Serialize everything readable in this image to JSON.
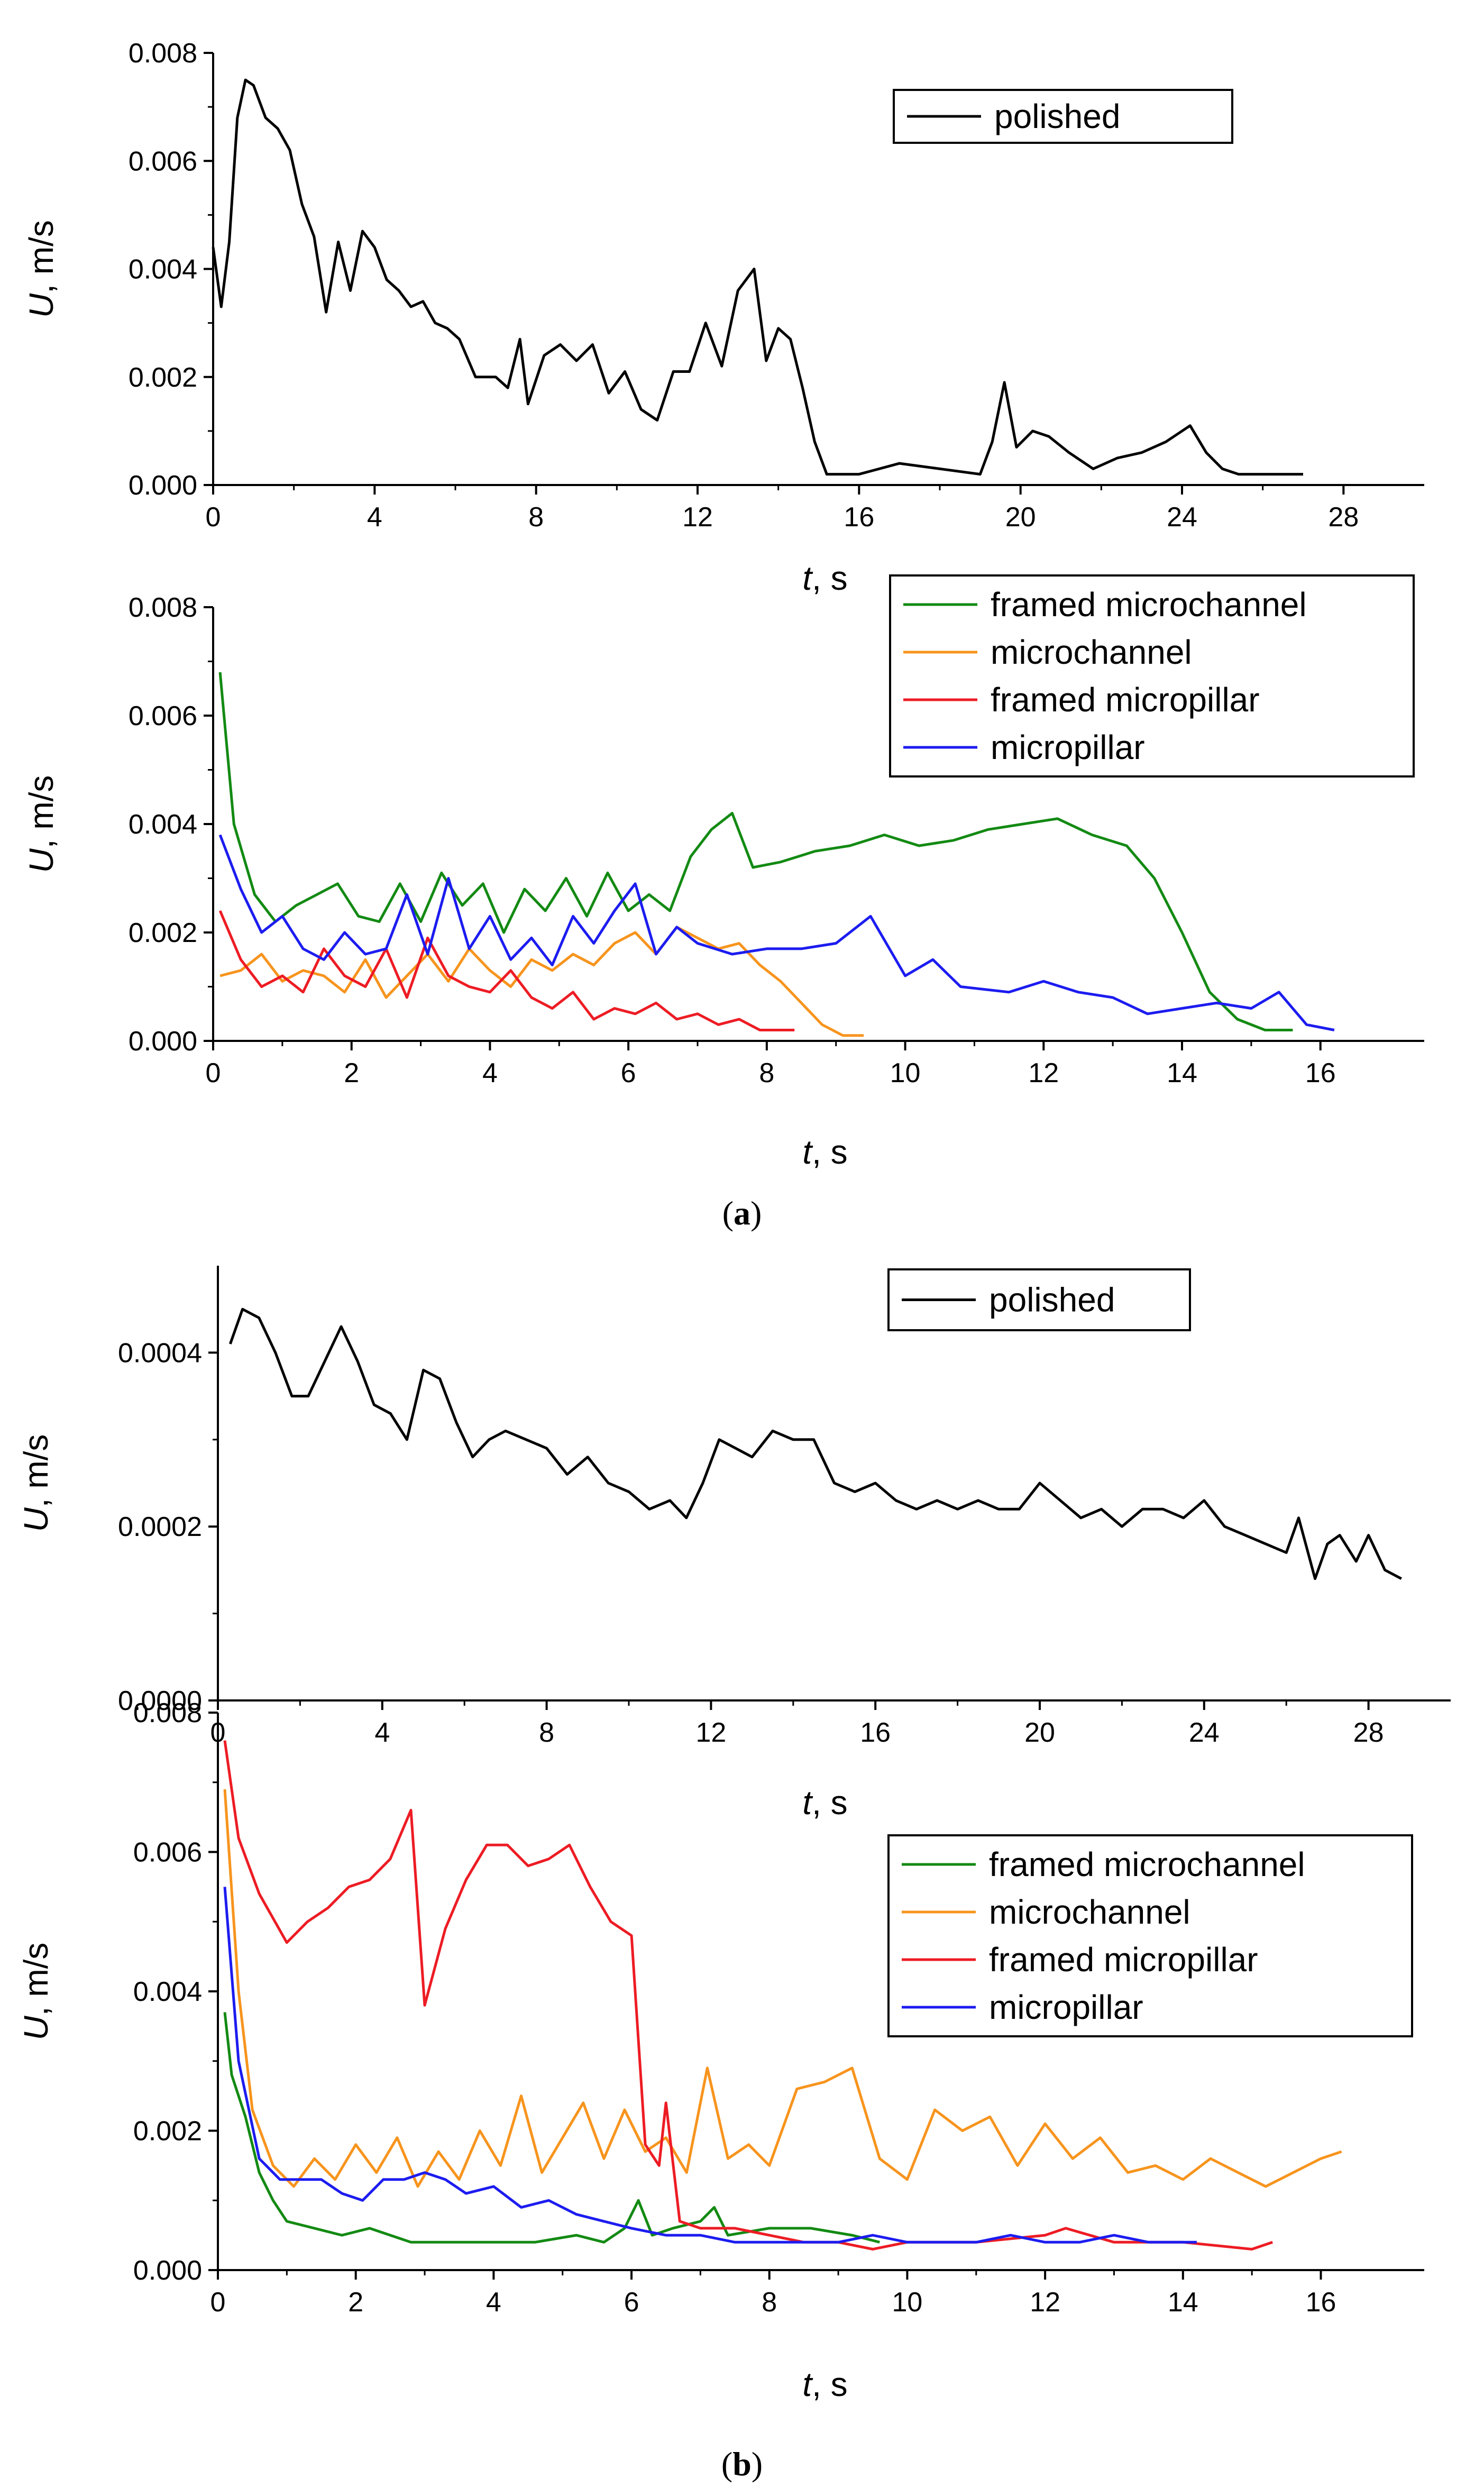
{
  "figure_labels": {
    "a": "a",
    "b": "b"
  },
  "axis_text": {
    "y_var": "U",
    "y_unit": ", m/s",
    "x_var": "t",
    "x_unit": ", s"
  },
  "colors": {
    "polished": "#000000",
    "framed microchannel": "#138a13",
    "microchannel": "#f7941d",
    "framed micropillar": "#ed1c24",
    "micropillar": "#1c1cf0"
  },
  "chart_data": [
    {
      "id": "a-top",
      "type": "line",
      "xlim": [
        0,
        30
      ],
      "ylim": [
        0,
        0.008
      ],
      "xticks": [
        0,
        4,
        8,
        12,
        16,
        20,
        24,
        28
      ],
      "yticks": [
        0,
        0.002,
        0.004,
        0.006,
        0.008
      ],
      "ytick_labels": [
        "0.000",
        "0.002",
        "0.004",
        "0.006",
        "0.008"
      ],
      "legend": [
        "polished"
      ],
      "series": [
        {
          "name": "polished",
          "x": [
            0,
            0.2,
            0.4,
            0.6,
            0.8,
            1.0,
            1.3,
            1.6,
            1.9,
            2.2,
            2.5,
            2.8,
            3.1,
            3.4,
            3.7,
            4.0,
            4.3,
            4.6,
            4.9,
            5.2,
            5.5,
            5.8,
            6.1,
            6.5,
            7.0,
            7.3,
            7.6,
            7.8,
            8.2,
            8.6,
            9.0,
            9.4,
            9.8,
            10.2,
            10.6,
            11.0,
            11.4,
            11.8,
            12.2,
            12.6,
            13.0,
            13.4,
            13.7,
            14.0,
            14.3,
            14.6,
            14.9,
            15.2,
            16.0,
            17.0,
            18.0,
            19.0,
            19.3,
            19.6,
            19.9,
            20.3,
            20.7,
            21.2,
            21.8,
            22.4,
            23.0,
            23.6,
            24.2,
            24.6,
            25.0,
            25.4,
            26.0,
            27.0
          ],
          "values": [
            0.0044,
            0.0033,
            0.0045,
            0.0068,
            0.0075,
            0.0074,
            0.0068,
            0.0066,
            0.0062,
            0.0052,
            0.0046,
            0.0032,
            0.0045,
            0.0036,
            0.0047,
            0.0044,
            0.0038,
            0.0036,
            0.0033,
            0.0034,
            0.003,
            0.0029,
            0.0027,
            0.002,
            0.002,
            0.0018,
            0.0027,
            0.0015,
            0.0024,
            0.0026,
            0.0023,
            0.0026,
            0.0017,
            0.0021,
            0.0014,
            0.0012,
            0.0021,
            0.0021,
            0.003,
            0.0022,
            0.0036,
            0.004,
            0.0023,
            0.0029,
            0.0027,
            0.0018,
            0.0008,
            0.0002,
            0.0002,
            0.0004,
            0.0003,
            0.0002,
            0.0008,
            0.0019,
            0.0007,
            0.001,
            0.0009,
            0.0006,
            0.0003,
            0.0005,
            0.0006,
            0.0008,
            0.0011,
            0.0006,
            0.0003,
            0.0002,
            0.0002,
            0.0002
          ]
        }
      ]
    },
    {
      "id": "a-bottom",
      "type": "line",
      "xlim": [
        0,
        17.5
      ],
      "ylim": [
        0,
        0.008
      ],
      "xticks": [
        0,
        2,
        4,
        6,
        8,
        10,
        12,
        14,
        16
      ],
      "yticks": [
        0,
        0.002,
        0.004,
        0.006,
        0.008
      ],
      "ytick_labels": [
        "0.000",
        "0.002",
        "0.004",
        "0.006",
        "0.008"
      ],
      "legend": [
        "framed microchannel",
        "microchannel",
        "framed micropillar",
        "micropillar"
      ],
      "series": [
        {
          "name": "framed microchannel",
          "x": [
            0.1,
            0.3,
            0.6,
            0.9,
            1.2,
            1.5,
            1.8,
            2.1,
            2.4,
            2.7,
            3.0,
            3.3,
            3.6,
            3.9,
            4.2,
            4.5,
            4.8,
            5.1,
            5.4,
            5.7,
            6.0,
            6.3,
            6.6,
            6.9,
            7.2,
            7.5,
            7.8,
            8.2,
            8.7,
            9.2,
            9.7,
            10.2,
            10.7,
            11.2,
            11.7,
            12.2,
            12.7,
            13.2,
            13.6,
            14.0,
            14.4,
            14.8,
            15.2,
            15.6
          ],
          "values": [
            0.0068,
            0.004,
            0.0027,
            0.0022,
            0.0025,
            0.0027,
            0.0029,
            0.0023,
            0.0022,
            0.0029,
            0.0022,
            0.0031,
            0.0025,
            0.0029,
            0.002,
            0.0028,
            0.0024,
            0.003,
            0.0023,
            0.0031,
            0.0024,
            0.0027,
            0.0024,
            0.0034,
            0.0039,
            0.0042,
            0.0032,
            0.0033,
            0.0035,
            0.0036,
            0.0038,
            0.0036,
            0.0037,
            0.0039,
            0.004,
            0.0041,
            0.0038,
            0.0036,
            0.003,
            0.002,
            0.0009,
            0.0004,
            0.0002,
            0.0002
          ]
        },
        {
          "name": "microchannel",
          "x": [
            0.1,
            0.4,
            0.7,
            1.0,
            1.3,
            1.6,
            1.9,
            2.2,
            2.5,
            2.8,
            3.1,
            3.4,
            3.7,
            4.0,
            4.3,
            4.6,
            4.9,
            5.2,
            5.5,
            5.8,
            6.1,
            6.4,
            6.7,
            7.0,
            7.3,
            7.6,
            7.9,
            8.2,
            8.5,
            8.8,
            9.1,
            9.4
          ],
          "values": [
            0.0012,
            0.0013,
            0.0016,
            0.0011,
            0.0013,
            0.0012,
            0.0009,
            0.0015,
            0.0008,
            0.0012,
            0.0016,
            0.0011,
            0.0017,
            0.0013,
            0.001,
            0.0015,
            0.0013,
            0.0016,
            0.0014,
            0.0018,
            0.002,
            0.0016,
            0.0021,
            0.0019,
            0.0017,
            0.0018,
            0.0014,
            0.0011,
            0.0007,
            0.0003,
            0.0001,
            0.0001
          ]
        },
        {
          "name": "framed micropillar",
          "x": [
            0.1,
            0.4,
            0.7,
            1.0,
            1.3,
            1.6,
            1.9,
            2.2,
            2.5,
            2.8,
            3.1,
            3.4,
            3.7,
            4.0,
            4.3,
            4.6,
            4.9,
            5.2,
            5.5,
            5.8,
            6.1,
            6.4,
            6.7,
            7.0,
            7.3,
            7.6,
            7.9,
            8.4
          ],
          "values": [
            0.0024,
            0.0015,
            0.001,
            0.0012,
            0.0009,
            0.0017,
            0.0012,
            0.001,
            0.0017,
            0.0008,
            0.0019,
            0.0012,
            0.001,
            0.0009,
            0.0013,
            0.0008,
            0.0006,
            0.0009,
            0.0004,
            0.0006,
            0.0005,
            0.0007,
            0.0004,
            0.0005,
            0.0003,
            0.0004,
            0.0002,
            0.0002
          ]
        },
        {
          "name": "micropillar",
          "x": [
            0.1,
            0.4,
            0.7,
            1.0,
            1.3,
            1.6,
            1.9,
            2.2,
            2.5,
            2.8,
            3.1,
            3.4,
            3.7,
            4.0,
            4.3,
            4.6,
            4.9,
            5.2,
            5.5,
            5.8,
            6.1,
            6.4,
            6.7,
            7.0,
            7.5,
            8.0,
            8.5,
            9.0,
            9.5,
            10.0,
            10.4,
            10.8,
            11.5,
            12.0,
            12.5,
            13.0,
            13.5,
            14.0,
            14.5,
            15.0,
            15.4,
            15.8,
            16.2
          ],
          "values": [
            0.0038,
            0.0028,
            0.002,
            0.0023,
            0.0017,
            0.0015,
            0.002,
            0.0016,
            0.0017,
            0.0027,
            0.0016,
            0.003,
            0.0017,
            0.0023,
            0.0015,
            0.0019,
            0.0014,
            0.0023,
            0.0018,
            0.0024,
            0.0029,
            0.0016,
            0.0021,
            0.0018,
            0.0016,
            0.0017,
            0.0017,
            0.0018,
            0.0023,
            0.0012,
            0.0015,
            0.001,
            0.0009,
            0.0011,
            0.0009,
            0.0008,
            0.0005,
            0.0006,
            0.0007,
            0.0006,
            0.0009,
            0.0003,
            0.0002
          ]
        }
      ]
    },
    {
      "id": "b-top",
      "type": "line",
      "xlim": [
        0,
        30
      ],
      "ylim": [
        0,
        0.0005
      ],
      "xticks": [
        0,
        4,
        8,
        12,
        16,
        20,
        24,
        28
      ],
      "yticks": [
        0,
        0.0002,
        0.0004
      ],
      "ytick_labels": [
        "0.0000",
        "0.0002",
        "0.0004"
      ],
      "legend": [
        "polished"
      ],
      "series": [
        {
          "name": "polished",
          "x": [
            0.3,
            0.6,
            1.0,
            1.4,
            1.8,
            2.2,
            2.6,
            3.0,
            3.4,
            3.8,
            4.2,
            4.6,
            5.0,
            5.4,
            5.8,
            6.2,
            6.6,
            7.0,
            7.5,
            8.0,
            8.5,
            9.0,
            9.5,
            10.0,
            10.5,
            11.0,
            11.4,
            11.8,
            12.2,
            12.6,
            13.0,
            13.5,
            14.0,
            14.5,
            15.0,
            15.5,
            16.0,
            16.5,
            17.0,
            17.5,
            18.0,
            18.5,
            19.0,
            19.5,
            20.0,
            20.5,
            21.0,
            21.5,
            22.0,
            22.5,
            23.0,
            23.5,
            24.0,
            24.5,
            25.0,
            25.5,
            26.0,
            26.3,
            26.7,
            27.0,
            27.3,
            27.7,
            28.0,
            28.4,
            28.8
          ],
          "values": [
            0.00041,
            0.00045,
            0.00044,
            0.0004,
            0.00035,
            0.00035,
            0.00039,
            0.00043,
            0.00039,
            0.00034,
            0.00033,
            0.0003,
            0.00038,
            0.00037,
            0.00032,
            0.00028,
            0.0003,
            0.00031,
            0.0003,
            0.00029,
            0.00026,
            0.00028,
            0.00025,
            0.00024,
            0.00022,
            0.00023,
            0.00021,
            0.00025,
            0.0003,
            0.00029,
            0.00028,
            0.00031,
            0.0003,
            0.0003,
            0.00025,
            0.00024,
            0.00025,
            0.00023,
            0.00022,
            0.00023,
            0.00022,
            0.00023,
            0.00022,
            0.00022,
            0.00025,
            0.00023,
            0.00021,
            0.00022,
            0.0002,
            0.00022,
            0.00022,
            0.00021,
            0.00023,
            0.0002,
            0.00019,
            0.00018,
            0.00017,
            0.00021,
            0.00014,
            0.00018,
            0.00019,
            0.00016,
            0.00019,
            0.00015,
            0.00014
          ]
        }
      ]
    },
    {
      "id": "b-bottom",
      "type": "line",
      "xlim": [
        0,
        17.5
      ],
      "ylim": [
        0,
        0.008
      ],
      "xticks": [
        0,
        2,
        4,
        6,
        8,
        10,
        12,
        14,
        16
      ],
      "yticks": [
        0,
        0.002,
        0.004,
        0.006,
        0.008
      ],
      "ytick_labels": [
        "0.000",
        "0.002",
        "0.004",
        "0.006",
        "0.008"
      ],
      "legend": [
        "framed microchannel",
        "microchannel",
        "framed micropillar",
        "micropillar"
      ],
      "series": [
        {
          "name": "framed microchannel",
          "x": [
            0.1,
            0.2,
            0.4,
            0.6,
            0.8,
            1.0,
            1.4,
            1.8,
            2.2,
            2.8,
            3.4,
            4.0,
            4.6,
            5.2,
            5.6,
            5.9,
            6.1,
            6.3,
            6.6,
            7.0,
            7.2,
            7.4,
            8.0,
            8.6,
            9.2,
            9.6
          ],
          "values": [
            0.0037,
            0.0028,
            0.0022,
            0.0014,
            0.001,
            0.0007,
            0.0006,
            0.0005,
            0.0006,
            0.0004,
            0.0004,
            0.0004,
            0.0004,
            0.0005,
            0.0004,
            0.0006,
            0.001,
            0.0005,
            0.0006,
            0.0007,
            0.0009,
            0.0005,
            0.0006,
            0.0006,
            0.0005,
            0.0004
          ]
        },
        {
          "name": "microchannel",
          "x": [
            0.1,
            0.3,
            0.5,
            0.8,
            1.1,
            1.4,
            1.7,
            2.0,
            2.3,
            2.6,
            2.9,
            3.2,
            3.5,
            3.8,
            4.1,
            4.4,
            4.7,
            5.0,
            5.3,
            5.6,
            5.9,
            6.2,
            6.5,
            6.8,
            7.1,
            7.4,
            7.7,
            8.0,
            8.4,
            8.8,
            9.2,
            9.6,
            10.0,
            10.4,
            10.8,
            11.2,
            11.6,
            12.0,
            12.4,
            12.8,
            13.2,
            13.6,
            14.0,
            14.4,
            14.8,
            15.2,
            15.6,
            16.0,
            16.3
          ],
          "values": [
            0.0069,
            0.004,
            0.0023,
            0.0015,
            0.0012,
            0.0016,
            0.0013,
            0.0018,
            0.0014,
            0.0019,
            0.0012,
            0.0017,
            0.0013,
            0.002,
            0.0015,
            0.0025,
            0.0014,
            0.0019,
            0.0024,
            0.0016,
            0.0023,
            0.0017,
            0.0019,
            0.0014,
            0.0029,
            0.0016,
            0.0018,
            0.0015,
            0.0026,
            0.0027,
            0.0029,
            0.0016,
            0.0013,
            0.0023,
            0.002,
            0.0022,
            0.0015,
            0.0021,
            0.0016,
            0.0019,
            0.0014,
            0.0015,
            0.0013,
            0.0016,
            0.0014,
            0.0012,
            0.0014,
            0.0016,
            0.0017
          ]
        },
        {
          "name": "framed micropillar",
          "x": [
            0.1,
            0.3,
            0.6,
            1.0,
            1.3,
            1.6,
            1.9,
            2.2,
            2.5,
            2.8,
            3.0,
            3.3,
            3.6,
            3.9,
            4.2,
            4.5,
            4.8,
            5.1,
            5.4,
            5.7,
            6.0,
            6.2,
            6.4,
            6.5,
            6.7,
            7.0,
            7.5,
            8.0,
            8.5,
            9.0,
            9.5,
            10.0,
            11.0,
            12.0,
            12.3,
            13.0,
            14.0,
            15.0,
            15.3
          ],
          "values": [
            0.0076,
            0.0062,
            0.0054,
            0.0047,
            0.005,
            0.0052,
            0.0055,
            0.0056,
            0.0059,
            0.0066,
            0.0038,
            0.0049,
            0.0056,
            0.0061,
            0.0061,
            0.0058,
            0.0059,
            0.0061,
            0.0055,
            0.005,
            0.0048,
            0.0018,
            0.0015,
            0.0024,
            0.0007,
            0.0006,
            0.0006,
            0.0005,
            0.0004,
            0.0004,
            0.0003,
            0.0004,
            0.0004,
            0.0005,
            0.0006,
            0.0004,
            0.0004,
            0.0003,
            0.0004
          ]
        },
        {
          "name": "micropillar",
          "x": [
            0.1,
            0.3,
            0.6,
            0.9,
            1.2,
            1.5,
            1.8,
            2.1,
            2.4,
            2.7,
            3.0,
            3.3,
            3.6,
            4.0,
            4.4,
            4.8,
            5.2,
            5.6,
            6.0,
            6.5,
            7.0,
            7.5,
            8.0,
            8.5,
            9.0,
            9.5,
            10.0,
            10.5,
            11.0,
            11.5,
            12.0,
            12.5,
            13.0,
            13.5,
            14.0,
            14.2
          ],
          "values": [
            0.0055,
            0.003,
            0.0016,
            0.0013,
            0.0013,
            0.0013,
            0.0011,
            0.001,
            0.0013,
            0.0013,
            0.0014,
            0.0013,
            0.0011,
            0.0012,
            0.0009,
            0.001,
            0.0008,
            0.0007,
            0.0006,
            0.0005,
            0.0005,
            0.0004,
            0.0004,
            0.0004,
            0.0004,
            0.0005,
            0.0004,
            0.0004,
            0.0004,
            0.0005,
            0.0004,
            0.0004,
            0.0005,
            0.0004,
            0.0004,
            0.0004
          ]
        }
      ]
    }
  ]
}
